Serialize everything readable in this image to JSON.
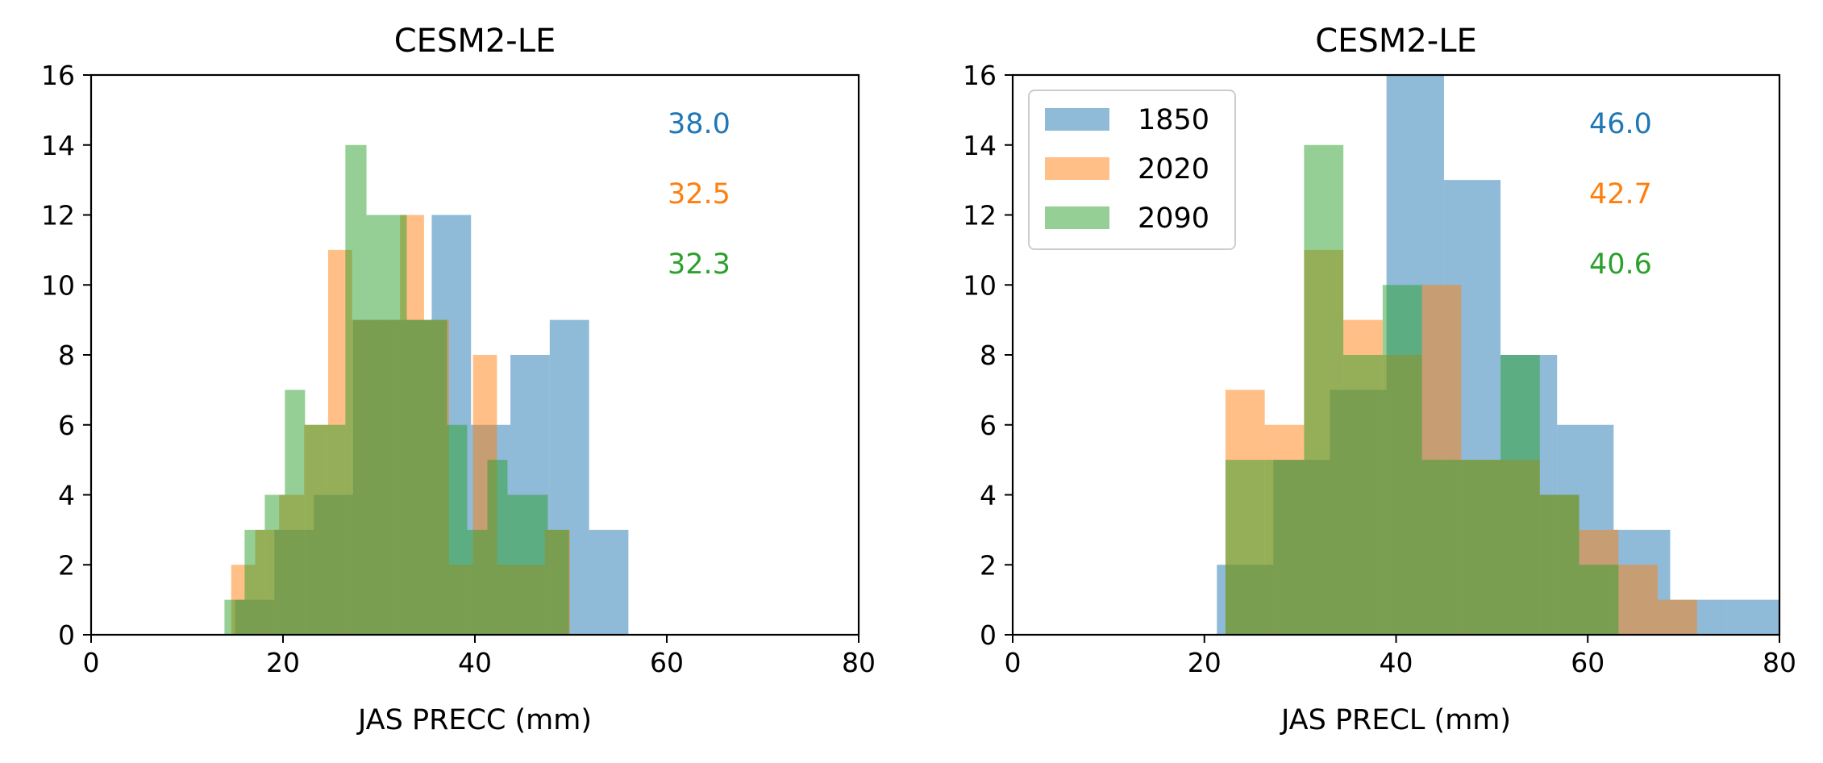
{
  "colors": {
    "1850": "#1f77b4",
    "2020": "#ff7f0e",
    "2090": "#2ca02c"
  },
  "chart_data": [
    {
      "type": "bar",
      "subtype": "histogram",
      "title": "CESM2-LE",
      "xlabel": "JAS PRECC (mm)",
      "ylabel": "",
      "xlim": [
        0,
        80
      ],
      "ylim": [
        0,
        16
      ],
      "xticks": [
        "0",
        "20",
        "40",
        "60",
        "80"
      ],
      "yticks": [
        "0",
        "2",
        "4",
        "6",
        "8",
        "10",
        "12",
        "14",
        "16"
      ],
      "grid": false,
      "legend": null,
      "annotations": [
        {
          "text": "38.0",
          "series": "1850"
        },
        {
          "text": "32.5",
          "series": "2020"
        },
        {
          "text": "32.3",
          "series": "2090"
        }
      ],
      "series": [
        {
          "name": "1850",
          "bin_edges": [
            15.0,
            19.1,
            23.2,
            27.3,
            31.4,
            35.5,
            39.6,
            43.7,
            47.8,
            51.9,
            56.0
          ],
          "counts": [
            1,
            3,
            4,
            9,
            9,
            12,
            6,
            8,
            9,
            3
          ]
        },
        {
          "name": "2020",
          "bin_edges": [
            14.6,
            17.1,
            19.6,
            22.2,
            24.7,
            27.2,
            29.7,
            32.2,
            34.7,
            37.3,
            39.8,
            42.3,
            44.8,
            47.3,
            49.9
          ],
          "counts": [
            2,
            3,
            4,
            6,
            11,
            9,
            9,
            12,
            9,
            2,
            8,
            2,
            2,
            3
          ]
        },
        {
          "name": "2090",
          "bin_edges": [
            13.9,
            16.0,
            18.1,
            20.2,
            22.3,
            24.4,
            26.5,
            28.7,
            30.8,
            32.9,
            35.0,
            37.1,
            39.2,
            41.3,
            43.4,
            45.5,
            47.6,
            49.8
          ],
          "counts": [
            1,
            3,
            4,
            7,
            6,
            6,
            14,
            12,
            12,
            9,
            9,
            6,
            3,
            5,
            4,
            4,
            3
          ]
        }
      ]
    },
    {
      "type": "bar",
      "subtype": "histogram",
      "title": "CESM2-LE",
      "xlabel": "JAS PRECL (mm)",
      "ylabel": "",
      "xlim": [
        0,
        80
      ],
      "ylim": [
        0,
        16
      ],
      "xticks": [
        "0",
        "20",
        "40",
        "60",
        "80"
      ],
      "yticks": [
        "0",
        "2",
        "4",
        "6",
        "8",
        "10",
        "12",
        "14",
        "16"
      ],
      "grid": false,
      "legend": {
        "position": "top-left",
        "entries": [
          "1850",
          "2020",
          "2090"
        ]
      },
      "annotations": [
        {
          "text": "46.0",
          "series": "1850"
        },
        {
          "text": "42.7",
          "series": "2020"
        },
        {
          "text": "40.6",
          "series": "2090"
        }
      ],
      "series": [
        {
          "name": "1850",
          "bin_edges": [
            21.3,
            27.2,
            33.1,
            39.0,
            45.0,
            50.9,
            56.8,
            62.7,
            68.6,
            74.5,
            80.4
          ],
          "counts": [
            2,
            5,
            7,
            16,
            13,
            8,
            6,
            3,
            1,
            1
          ]
        },
        {
          "name": "2020",
          "bin_edges": [
            22.2,
            26.3,
            30.4,
            34.5,
            38.6,
            42.7,
            46.8,
            50.9,
            55.0,
            59.1,
            63.2,
            67.3,
            71.4
          ],
          "counts": [
            7,
            6,
            11,
            9,
            8,
            10,
            5,
            5,
            4,
            3,
            2,
            1
          ]
        },
        {
          "name": "2090",
          "bin_edges": [
            22.2,
            26.3,
            30.4,
            34.5,
            38.6,
            42.7,
            46.8,
            50.9,
            55.0,
            59.1,
            63.2
          ],
          "counts": [
            5,
            5,
            14,
            8,
            10,
            5,
            5,
            8,
            4,
            2
          ]
        }
      ]
    }
  ]
}
